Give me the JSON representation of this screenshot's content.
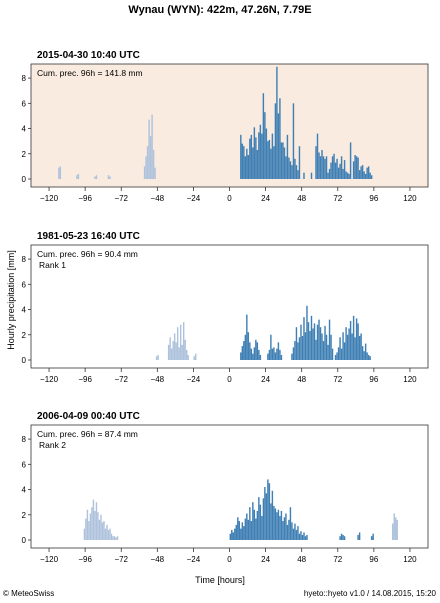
{
  "title": "Wynau (WYN): 422m, 47.26N, 7.79E",
  "ylabel": "Hourly precipitation [mm]",
  "xlabel": "Time [hours]",
  "copyright": "© MeteoSwiss",
  "version": "hyeto::hyeto v1.0 / 14.08.2015, 15:20",
  "colors": {
    "past": "#aec2dc",
    "future": "#3f7fb4",
    "highlight_bg": "#f9ebdf"
  },
  "chart_data": [
    {
      "type": "bar",
      "title": "2015-04-30 10:40 UTC",
      "annotation": "Cum. prec. 96h = 141.8 mm",
      "rank": "",
      "highlight": true,
      "xlim": [
        -132,
        132
      ],
      "ylim": [
        0,
        8.8
      ],
      "xticks": [
        -120,
        -96,
        -72,
        -48,
        -24,
        0,
        24,
        48,
        72,
        96,
        120
      ],
      "yticks": [
        0,
        2,
        4,
        6,
        8
      ],
      "series": [
        {
          "color": "past",
          "x": [
            -113,
            -112,
            -101,
            -100,
            -89,
            -88,
            -80,
            -79,
            -56,
            -55,
            -54,
            -53,
            -52,
            -51,
            -50,
            -49
          ],
          "values": [
            0.9,
            1.0,
            0.3,
            0.4,
            0.2,
            0.3,
            0.3,
            0.2,
            1.0,
            1.8,
            2.6,
            4.7,
            3.4,
            5.1,
            2.3,
            0.9
          ]
        },
        {
          "color": "future",
          "x": [
            8,
            9,
            10,
            11,
            12,
            13,
            14,
            15,
            16,
            17,
            18,
            19,
            20,
            21,
            22,
            23,
            24,
            25,
            26,
            27,
            28,
            29,
            30,
            31,
            32,
            33,
            34,
            35,
            36,
            37,
            38,
            39,
            40,
            41,
            42,
            43,
            44,
            45,
            46,
            47,
            50,
            55,
            58,
            59,
            60,
            61,
            62,
            63,
            64,
            65,
            66,
            67,
            68,
            69,
            70,
            71,
            72,
            73,
            74,
            75,
            76,
            77,
            78,
            79,
            80,
            81,
            83,
            84,
            85,
            86,
            87,
            88,
            89,
            90,
            91,
            92,
            93,
            94,
            95
          ],
          "values": [
            3.5,
            2.8,
            2.6,
            1.8,
            2.4,
            1.9,
            3.2,
            3.5,
            2.5,
            4.1,
            3.3,
            2.3,
            3.7,
            4.3,
            3.6,
            6.8,
            5.3,
            4.0,
            3.0,
            3.1,
            2.4,
            3.6,
            2.6,
            6.0,
            8.9,
            5.2,
            6.4,
            2.9,
            2.9,
            2.5,
            1.8,
            3.5,
            1.7,
            1.4,
            1.1,
            6.0,
            1.6,
            1.1,
            0.7,
            2.6,
            0.5,
            0.5,
            2.6,
            3.6,
            2.1,
            1.8,
            2.3,
            1.8,
            1.6,
            1.8,
            0.5,
            0.8,
            1.3,
            1.8,
            2.0,
            1.3,
            1.6,
            0.9,
            1.2,
            1.8,
            0.8,
            1.5,
            0.6,
            0.5,
            0.4,
            2.9,
            1.4,
            1.9,
            1.8,
            1.7,
            0.7,
            1.0,
            1.1,
            0.6,
            0.4,
            0.9,
            1.0,
            0.5,
            0.3
          ]
        }
      ]
    },
    {
      "type": "bar",
      "title": "1981-05-23 16:40 UTC",
      "annotation": "Cum. prec. 96h = 90.4 mm",
      "rank": "Rank 1",
      "highlight": false,
      "xlim": [
        -132,
        132
      ],
      "ylim": [
        0,
        8.8
      ],
      "xticks": [
        -120,
        -96,
        -72,
        -48,
        -24,
        0,
        24,
        48,
        72,
        96,
        120
      ],
      "yticks": [
        0,
        2,
        4,
        6,
        8
      ],
      "series": [
        {
          "color": "past",
          "x": [
            -48,
            -47,
            -40,
            -39,
            -38,
            -37,
            -36,
            -35,
            -34,
            -33,
            -32,
            -31,
            -30,
            -29,
            -28,
            -27,
            -23,
            -22
          ],
          "values": [
            0.3,
            0.4,
            1.2,
            1.8,
            0.9,
            1.5,
            2.1,
            1.4,
            2.6,
            1.0,
            2.8,
            1.2,
            3.0,
            1.6,
            0.8,
            0.4,
            0.3,
            0.5
          ]
        },
        {
          "color": "future",
          "x": [
            8,
            9,
            10,
            11,
            12,
            13,
            14,
            15,
            16,
            17,
            18,
            19,
            20,
            21,
            26,
            27,
            28,
            29,
            30,
            31,
            32,
            33,
            34,
            35,
            42,
            43,
            44,
            45,
            46,
            47,
            48,
            49,
            50,
            51,
            52,
            53,
            54,
            55,
            56,
            57,
            58,
            59,
            60,
            61,
            62,
            63,
            64,
            65,
            66,
            67,
            68,
            69,
            71,
            72,
            73,
            74,
            75,
            76,
            77,
            78,
            79,
            80,
            81,
            82,
            83,
            84,
            85,
            86,
            87,
            88,
            89,
            90,
            91,
            92,
            93,
            94
          ],
          "values": [
            0.6,
            1.1,
            1.5,
            2.0,
            3.6,
            2.2,
            1.4,
            0.9,
            0.5,
            1.0,
            1.6,
            1.4,
            0.8,
            0.4,
            0.5,
            0.8,
            2.0,
            0.9,
            1.0,
            0.6,
            0.9,
            1.4,
            0.8,
            0.4,
            0.5,
            1.0,
            1.5,
            2.6,
            1.4,
            1.8,
            2.8,
            1.9,
            3.4,
            2.2,
            4.3,
            3.0,
            2.3,
            3.5,
            2.5,
            2.9,
            1.6,
            2.8,
            3.2,
            2.6,
            2.1,
            1.5,
            2.7,
            2.0,
            1.2,
            3.2,
            2.0,
            0.9,
            0.4,
            0.6,
            1.0,
            1.8,
            0.9,
            2.2,
            1.4,
            2.6,
            2.0,
            2.5,
            3.1,
            2.1,
            3.5,
            1.8,
            3.3,
            2.9,
            1.9,
            2.1,
            1.1,
            0.7,
            1.3,
            0.6,
            0.4,
            0.3
          ]
        }
      ]
    },
    {
      "type": "bar",
      "title": "2006-04-09 00:40 UTC",
      "annotation": "Cum. prec. 96h = 87.4 mm",
      "rank": "Rank 2",
      "highlight": false,
      "xlim": [
        -132,
        132
      ],
      "ylim": [
        0,
        8.8
      ],
      "xticks": [
        -120,
        -96,
        -72,
        -48,
        -24,
        0,
        24,
        48,
        72,
        96,
        120
      ],
      "yticks": [
        0,
        2,
        4,
        6,
        8
      ],
      "series": [
        {
          "color": "past",
          "x": [
            -96,
            -95,
            -94,
            -93,
            -92,
            -91,
            -90,
            -89,
            -88,
            -87,
            -86,
            -85,
            -84,
            -83,
            -82,
            -81,
            -80,
            -79,
            -78,
            -77,
            -76,
            -75,
            -74,
            109,
            110,
            111,
            112
          ],
          "values": [
            0.9,
            1.7,
            2.4,
            1.5,
            2.1,
            2.6,
            3.2,
            2.3,
            3.0,
            2.2,
            1.6,
            2.0,
            1.4,
            1.5,
            0.9,
            1.2,
            0.8,
            0.9,
            0.5,
            0.3,
            0.3,
            0.2,
            0.3,
            1.3,
            2.1,
            1.8,
            1.6
          ]
        },
        {
          "color": "future",
          "x": [
            1,
            2,
            3,
            4,
            5,
            6,
            7,
            8,
            9,
            10,
            11,
            12,
            13,
            14,
            15,
            16,
            17,
            18,
            19,
            20,
            21,
            22,
            23,
            24,
            25,
            26,
            27,
            28,
            29,
            30,
            31,
            32,
            33,
            34,
            35,
            36,
            37,
            38,
            39,
            40,
            41,
            42,
            43,
            44,
            45,
            46,
            47,
            48,
            49,
            50,
            51,
            52,
            74,
            75,
            76,
            77,
            86,
            87,
            95,
            96
          ],
          "values": [
            0.5,
            0.8,
            0.6,
            0.9,
            1.2,
            1.8,
            1.5,
            0.9,
            1.4,
            1.1,
            1.7,
            2.1,
            1.6,
            2.6,
            1.5,
            3.0,
            2.4,
            1.7,
            2.3,
            3.4,
            2.8,
            1.9,
            3.3,
            4.2,
            3.7,
            4.8,
            4.5,
            2.9,
            3.9,
            2.7,
            2.5,
            2.2,
            2.4,
            1.9,
            2.3,
            1.5,
            1.8,
            2.1,
            1.2,
            1.6,
            2.6,
            1.4,
            0.9,
            1.3,
            0.8,
            1.1,
            0.5,
            0.7,
            0.4,
            0.6,
            0.3,
            0.4,
            0.3,
            0.5,
            0.4,
            0.3,
            0.4,
            0.6,
            0.3,
            0.5
          ]
        }
      ]
    }
  ]
}
